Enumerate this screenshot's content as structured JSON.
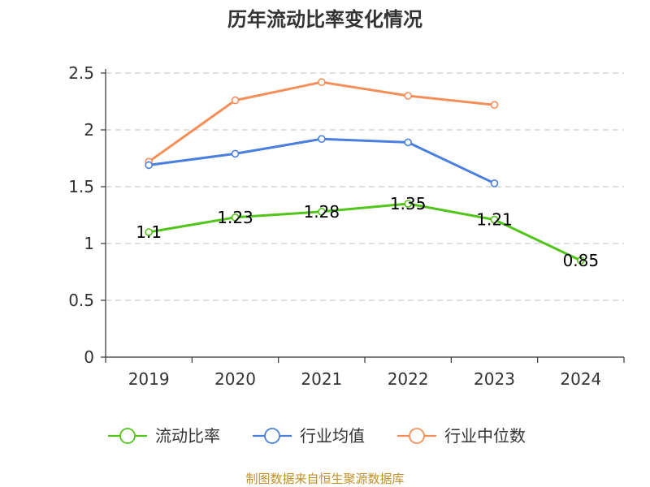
{
  "chart_data": {
    "type": "line",
    "title": "历年流动比率变化情况",
    "categories": [
      "2019",
      "2020",
      "2021",
      "2022",
      "2023",
      "2024"
    ],
    "ylim": [
      0,
      2.5
    ],
    "yticks": [
      "0",
      "0.5",
      "1",
      "1.5",
      "2",
      "2.5"
    ],
    "grid": true,
    "legend_position": "bottom",
    "series": [
      {
        "name": "流动比率",
        "color": "#52c41a",
        "values": [
          1.1,
          1.23,
          1.28,
          1.35,
          1.21,
          0.85
        ],
        "labels": [
          "1.1",
          "1.23",
          "1.28",
          "1.35",
          "1.21",
          "0.85"
        ]
      },
      {
        "name": "行业均值",
        "color": "#4a7fe0",
        "values": [
          1.69,
          1.79,
          1.92,
          1.89,
          1.53,
          null
        ]
      },
      {
        "name": "行业中位数",
        "color": "#f58e59",
        "values": [
          1.72,
          2.26,
          2.42,
          2.3,
          2.22,
          null
        ]
      }
    ]
  },
  "source": "制图数据来自恒生聚源数据库"
}
